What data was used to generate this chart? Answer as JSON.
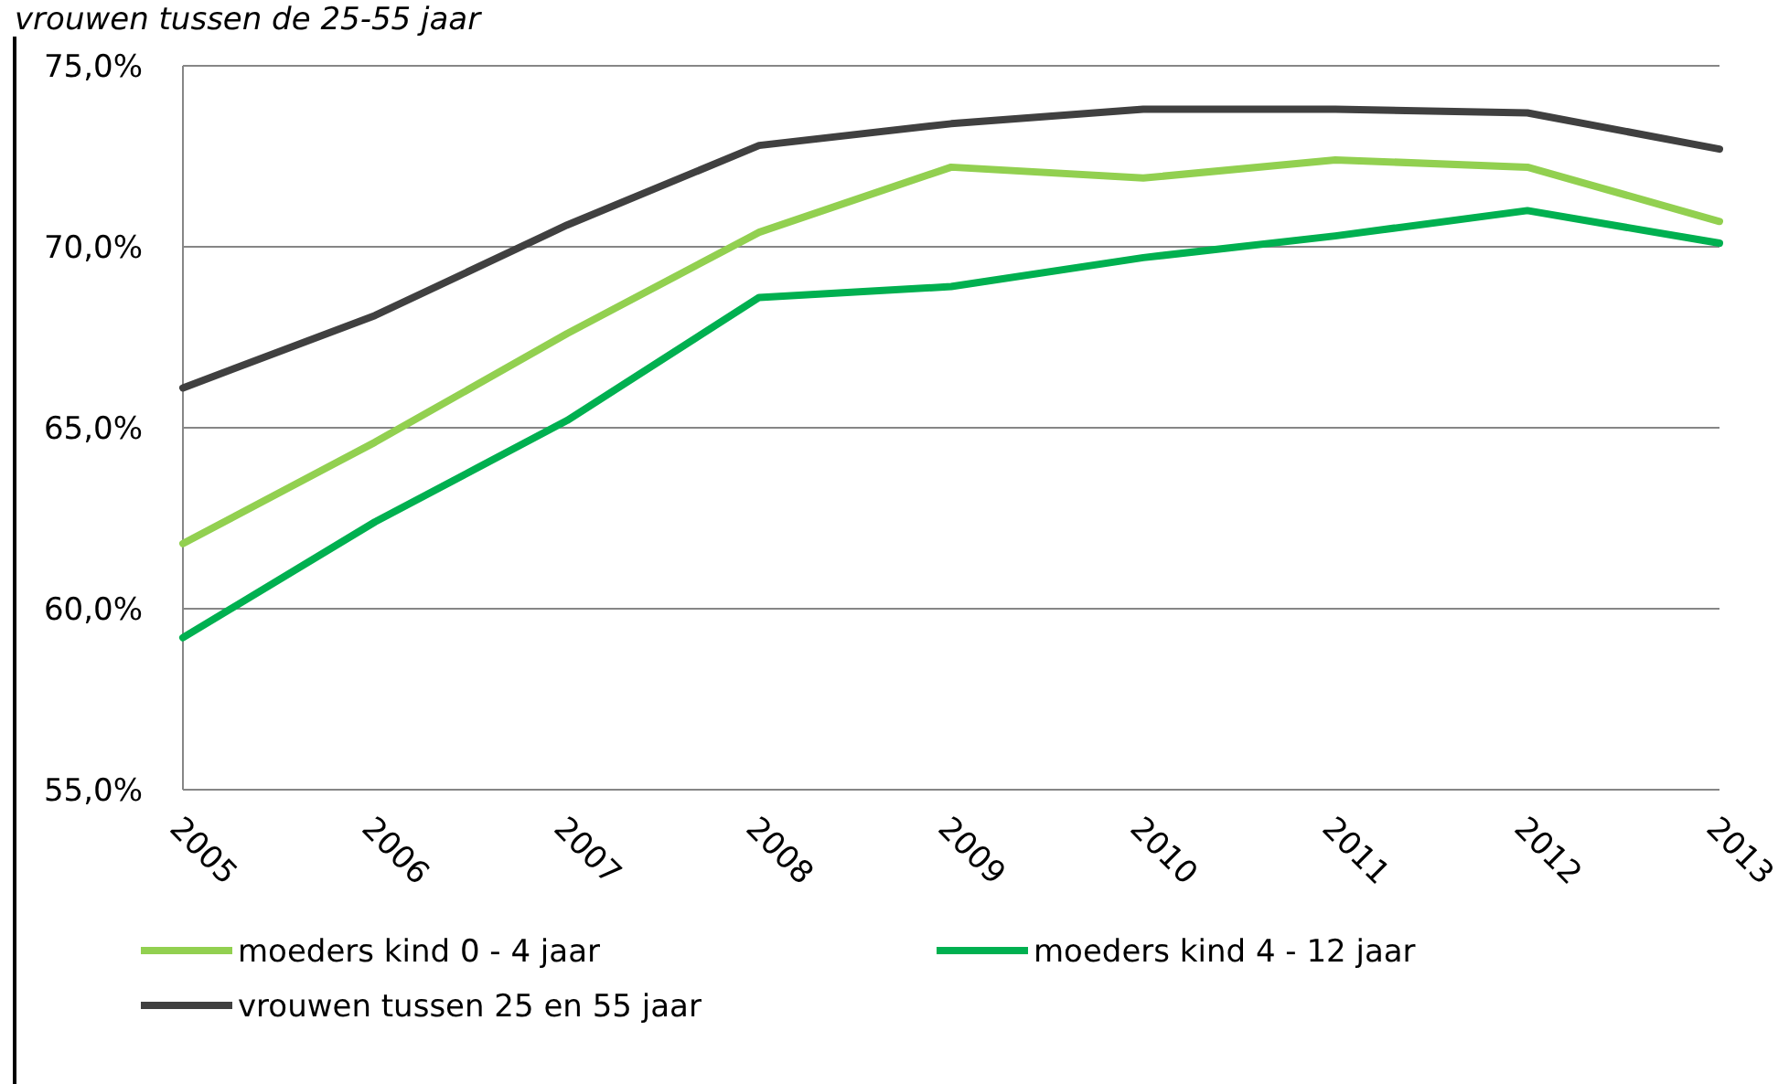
{
  "chart_data": {
    "type": "line",
    "title": "vrouwen tussen de 25-55 jaar",
    "categories": [
      "2005",
      "2006",
      "2007",
      "2008",
      "2009",
      "2010",
      "2011",
      "2012",
      "2013"
    ],
    "series": [
      {
        "name": "moeders kind 0 - 4 jaar",
        "color": "#92d050",
        "values": [
          61.8,
          64.6,
          67.6,
          70.4,
          72.2,
          71.9,
          72.4,
          72.2,
          70.7
        ]
      },
      {
        "name": "moeders kind 4 - 12 jaar",
        "color": "#00b050",
        "values": [
          59.2,
          62.4,
          65.2,
          68.6,
          68.9,
          69.7,
          70.3,
          71.0,
          70.1
        ]
      },
      {
        "name": "vrouwen tussen 25 en 55 jaar",
        "color": "#404040",
        "values": [
          66.1,
          68.1,
          70.6,
          72.8,
          73.4,
          73.8,
          73.8,
          73.7,
          72.7
        ]
      }
    ],
    "ylim": [
      55,
      75
    ],
    "yticks": [
      {
        "value": 55,
        "label": "55,0%"
      },
      {
        "value": 60,
        "label": "60,0%"
      },
      {
        "value": 65,
        "label": "65,0%"
      },
      {
        "value": 70,
        "label": "70,0%"
      },
      {
        "value": 75,
        "label": "75,0%"
      }
    ],
    "grid": "y",
    "legend": "bottom",
    "marker": "none",
    "line_style": "solid"
  }
}
